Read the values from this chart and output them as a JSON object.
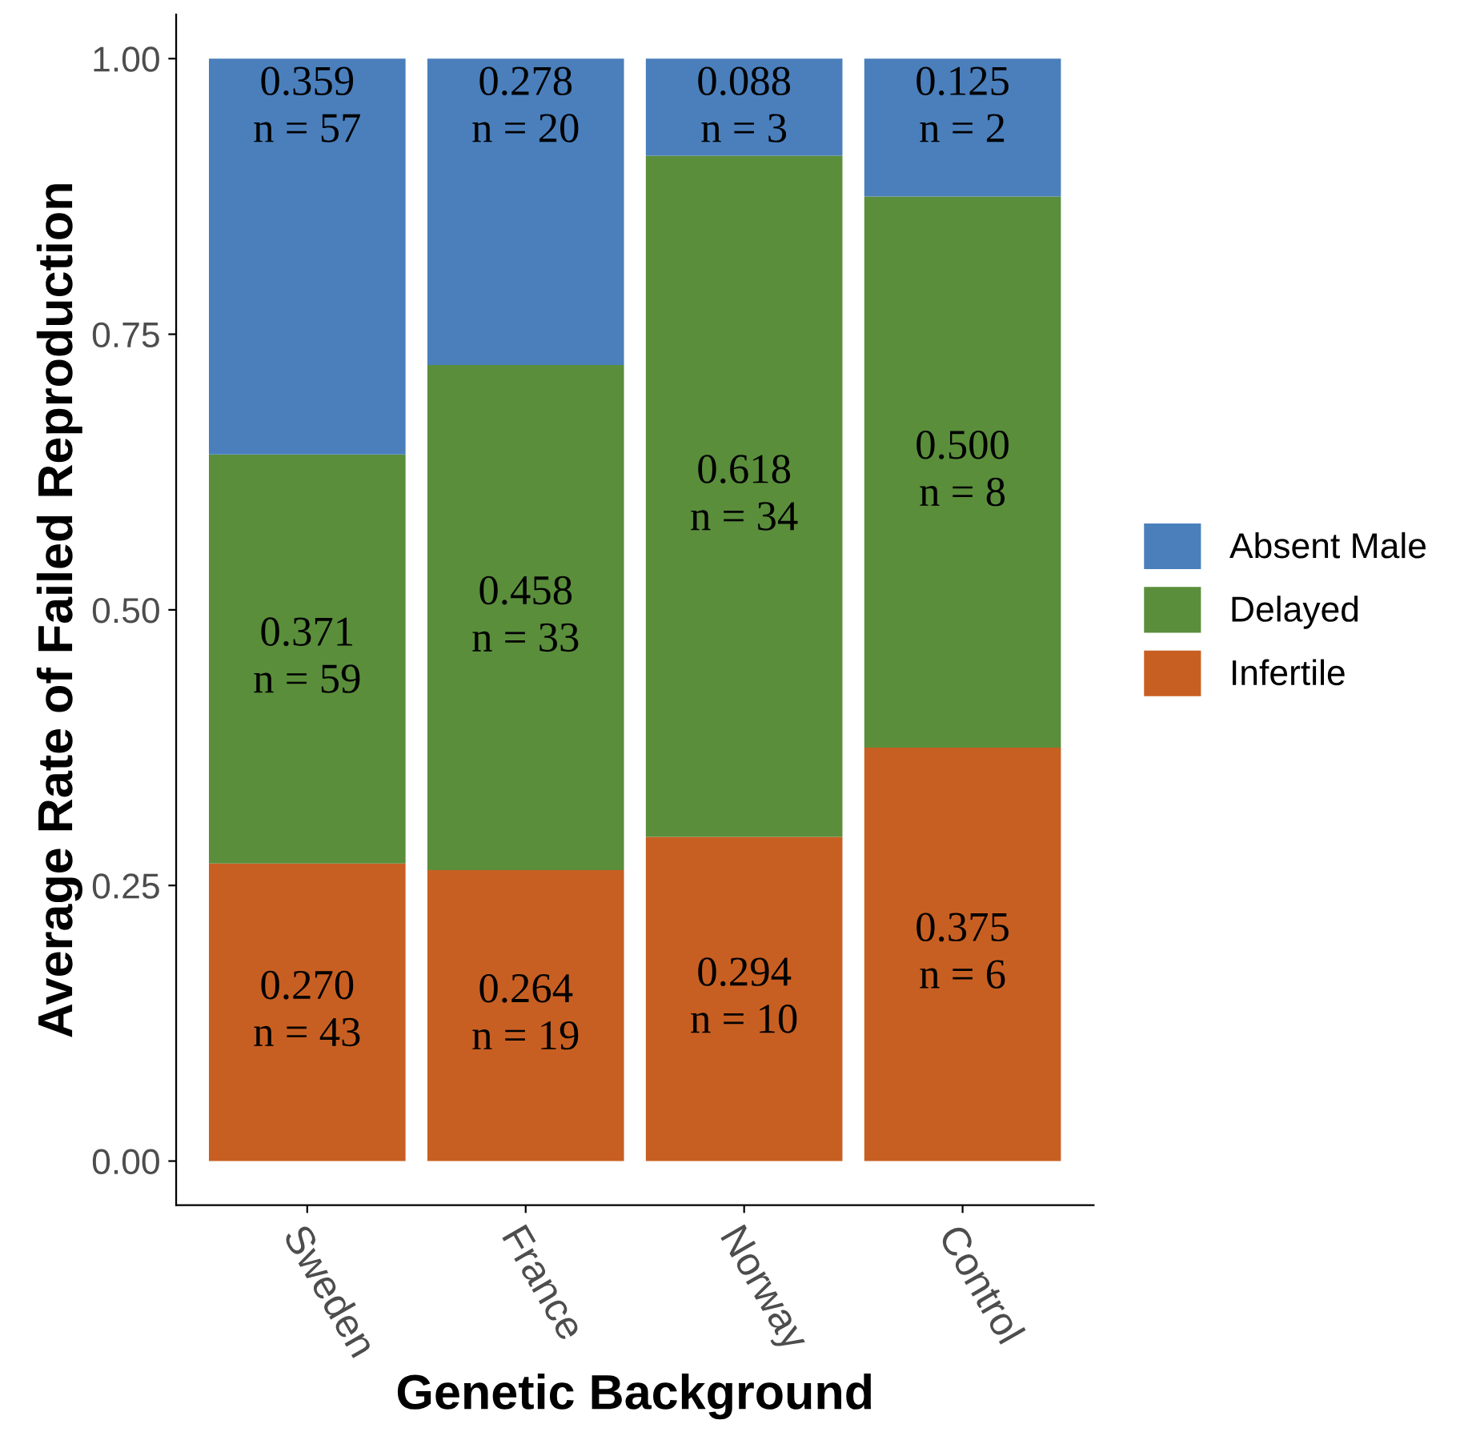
{
  "chart_data": {
    "type": "bar",
    "stacked": true,
    "xlabel": "Genetic Background",
    "ylabel": "Average Rate of Failed Reproduction",
    "categories": [
      "Sweden",
      "France",
      "Norway",
      "Control"
    ],
    "series": [
      {
        "name": "Infertile",
        "color": "#c85f22",
        "values": [
          0.27,
          0.264,
          0.294,
          0.375
        ],
        "value_labels": [
          "0.270\nn = 43",
          "0.264\nn = 19",
          "0.294\nn = 10",
          "0.375\nn = 6"
        ]
      },
      {
        "name": "Delayed",
        "color": "#5a8e3b",
        "values": [
          0.371,
          0.458,
          0.618,
          0.5
        ],
        "value_labels": [
          "0.371\nn = 59",
          "0.458\nn = 33",
          "0.618\nn = 34",
          "0.500\nn = 8"
        ]
      },
      {
        "name": "Absent Male",
        "color": "#4a7fbc",
        "values": [
          0.359,
          0.278,
          0.088,
          0.125
        ],
        "value_labels": [
          "0.359\nn = 57",
          "0.278\nn = 20",
          "0.088\nn = 3",
          "0.125\nn = 2"
        ]
      }
    ],
    "ylim": [
      -0.04,
      1.04
    ],
    "yticks": [
      {
        "value": 0,
        "label": "0.00"
      },
      {
        "value": 0.25,
        "label": "0.25"
      },
      {
        "value": 0.5,
        "label": "0.50"
      },
      {
        "value": 0.75,
        "label": "0.75"
      },
      {
        "value": 1,
        "label": "1.00"
      }
    ],
    "grid": false,
    "legend": "right"
  }
}
